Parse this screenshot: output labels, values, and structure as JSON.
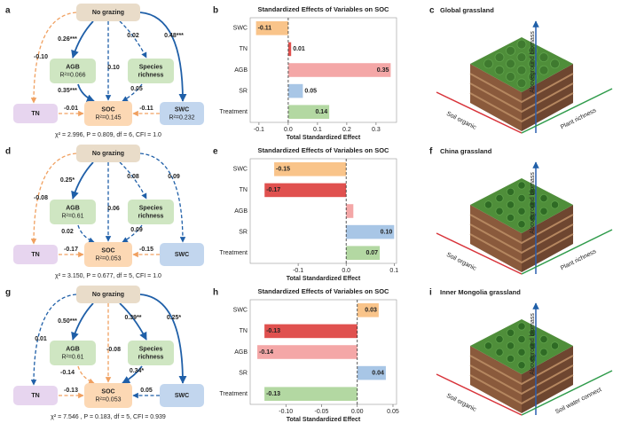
{
  "diagrams": [
    {
      "letter": "a",
      "nodes": [
        {
          "label": [
            "No grazing"
          ]
        },
        {
          "label": [
            "AGB"
          ],
          "r2": "R²=0.066"
        },
        {
          "label": [
            "Species",
            "richness"
          ]
        },
        {
          "label": [
            "TN"
          ]
        },
        {
          "label": [
            "SOC"
          ],
          "r2": "R²=0.145"
        },
        {
          "label": [
            "SWC"
          ],
          "r2": "R²=0.232"
        }
      ],
      "edges": [
        "0.26***",
        "0.02",
        "0.48***",
        "-0.10",
        "0.10",
        "0.35***",
        "0.05",
        "-0.01",
        "-0.11"
      ],
      "fit": "χ² = 2.996, P = 0.809, df = 6, CFI = 1.0"
    },
    {
      "letter": "d",
      "nodes": [
        {
          "label": [
            "No grazing"
          ]
        },
        {
          "label": [
            "AGB"
          ],
          "r2": "R²=0.61"
        },
        {
          "label": [
            "Species",
            "richness"
          ]
        },
        {
          "label": [
            "TN"
          ]
        },
        {
          "label": [
            "SOC"
          ],
          "r2": "R²=0.053"
        },
        {
          "label": [
            "SWC"
          ]
        }
      ],
      "edges": [
        "0.25*",
        "0.08",
        "0.09",
        "-0.08",
        "0.06",
        "0.02",
        "0.09",
        "-0.17",
        "-0.15"
      ],
      "fit": "χ² = 3.150, P = 0.677, df = 5, CFI = 1.0"
    },
    {
      "letter": "g",
      "nodes": [
        {
          "label": [
            "No grazing"
          ]
        },
        {
          "label": [
            "AGB"
          ],
          "r2": "R²=0.61"
        },
        {
          "label": [
            "Species",
            "richness"
          ]
        },
        {
          "label": [
            "TN"
          ]
        },
        {
          "label": [
            "SOC"
          ],
          "r2": "R²=0.053"
        },
        {
          "label": [
            "SWC"
          ]
        }
      ],
      "edges": [
        "0.50***",
        "0.39**",
        "0.25*",
        "0.01",
        "-0.08",
        "-0.14",
        "0.34*",
        "-0.13",
        "0.05"
      ],
      "fit": "χ² = 7.546 , P = 0.183, df = 5, CFI = 0.939"
    }
  ],
  "chart_data": [
    {
      "letter": "b",
      "type": "bar",
      "orientation": "horizontal",
      "title": "Standardized Effects of Variables on SOC",
      "categories": [
        "SWC",
        "TN",
        "AGB",
        "SR",
        "Treatment"
      ],
      "values": [
        -0.11,
        0.01,
        0.35,
        0.05,
        0.14
      ],
      "colors": [
        "#f9c48a",
        "#e0514f",
        "#f4a7a7",
        "#a8c6e6",
        "#b3d8a2"
      ],
      "xlim": [
        -0.13,
        0.37
      ],
      "xticks": [
        -0.1,
        {
          "value": 0,
          "label": "0.0"
        },
        0.1,
        0.2,
        0.3
      ],
      "xlabel": "Total Standardized Effect"
    },
    {
      "letter": "e",
      "type": "bar",
      "orientation": "horizontal",
      "title": "Standardized Effects of Variables on SOC",
      "categories": [
        "SWC",
        "TN",
        "AGB",
        "SR",
        "Treatment"
      ],
      "values": [
        -0.15,
        -0.17,
        0.015,
        0.1,
        0.07
      ],
      "value_labels": [
        "-0.15",
        "-0.17",
        null,
        "0.10",
        "0.07"
      ],
      "colors": [
        "#f9c48a",
        "#e0514f",
        "#f4a7a7",
        "#a8c6e6",
        "#b3d8a2"
      ],
      "xlim": [
        -0.2,
        0.105
      ],
      "xticks": [
        -0.1,
        {
          "value": 0,
          "label": "0.0"
        },
        0.1
      ],
      "xlabel": "Total Standardized Effect"
    },
    {
      "letter": "h",
      "type": "bar",
      "orientation": "horizontal",
      "title": "Standardized Effects of Variables on SOC",
      "categories": [
        "SWC",
        "TN",
        "AGB",
        "SR",
        "Treatment"
      ],
      "values": [
        0.03,
        -0.13,
        -0.14,
        0.04,
        -0.13
      ],
      "colors": [
        "#f9c48a",
        "#e0514f",
        "#f4a7a7",
        "#a8c6e6",
        "#b3d8a2"
      ],
      "xlim": [
        -0.15,
        0.055
      ],
      "xticks": [
        {
          "value": -0.1,
          "label": "-0.10"
        },
        -0.05,
        {
          "value": 0,
          "label": "0.00"
        },
        0.05
      ],
      "xlabel": "Total Standardized Effect"
    }
  ],
  "illustrations": [
    {
      "letter": "c",
      "title": "Global grassland",
      "axes": [
        "Aboveground biomass",
        "Soil organic",
        "Plant richness"
      ]
    },
    {
      "letter": "f",
      "title": "China grassland",
      "axes": [
        "Aboveground biomass",
        "Soil organic",
        "Plant richness"
      ]
    },
    {
      "letter": "i",
      "title": "Inner Mongolia grassland",
      "axes": [
        "Aboveground biomass",
        "Soil organic",
        "Soil water connect"
      ]
    }
  ]
}
